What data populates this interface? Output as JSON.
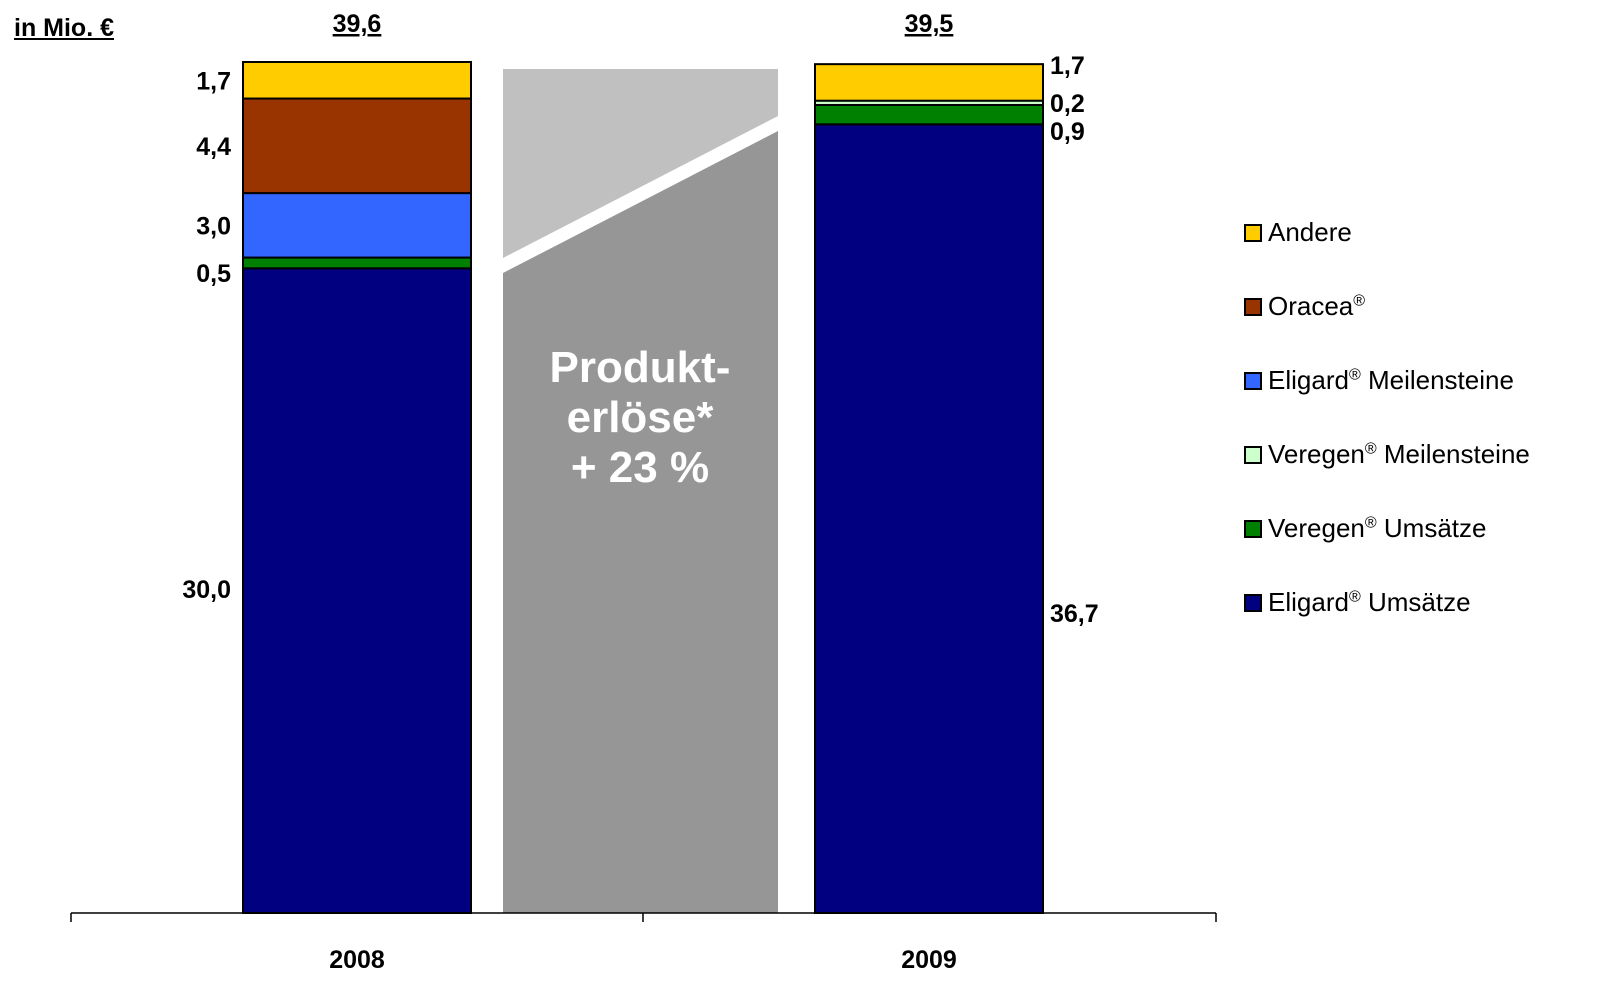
{
  "unit_label": "in Mio. €",
  "growth_label": [
    "Produkt-",
    "erlöse*",
    "+ 23 %"
  ],
  "chart_data": {
    "type": "bar",
    "stacked": true,
    "categories": [
      "2008",
      "2009"
    ],
    "totals": [
      "39,6",
      "39,5"
    ],
    "ylim": [
      0,
      39.6
    ],
    "series": [
      {
        "name": "Eligard® Umsätze",
        "color": "#000080",
        "values": [
          30.0,
          36.7
        ],
        "labels": [
          "30,0",
          "36,7"
        ]
      },
      {
        "name": "Veregen® Umsätze",
        "color": "#008000",
        "values": [
          0.5,
          0.9
        ],
        "labels": [
          "0,5",
          "0,9"
        ]
      },
      {
        "name": "Veregen® Meilensteine",
        "color": "#ccffcc",
        "values": [
          0.0,
          0.2
        ],
        "labels": [
          "",
          "0,2"
        ]
      },
      {
        "name": "Eligard® Meilensteine",
        "color": "#3366ff",
        "values": [
          3.0,
          0.0
        ],
        "labels": [
          "3,0",
          ""
        ]
      },
      {
        "name": "Oracea®",
        "color": "#993300",
        "values": [
          4.4,
          0.0
        ],
        "labels": [
          "4,4",
          ""
        ]
      },
      {
        "name": "Andere",
        "color": "#ffcc00",
        "values": [
          1.7,
          1.7
        ],
        "labels": [
          "1,7",
          "1,7"
        ]
      }
    ],
    "legend": {
      "placement": "right",
      "items": [
        {
          "pre": "Andere",
          "sup": "",
          "post": "",
          "color": "#ffcc00"
        },
        {
          "pre": "Oracea",
          "sup": "®",
          "post": "",
          "color": "#993300"
        },
        {
          "pre": "Eligard",
          "sup": "®",
          "post": " Meilensteine",
          "color": "#3366ff"
        },
        {
          "pre": "Veregen",
          "sup": "®",
          "post": " Meilensteine",
          "color": "#ccffcc"
        },
        {
          "pre": "Veregen",
          "sup": "®",
          "post": " Umsätze",
          "color": "#008000"
        },
        {
          "pre": "Eligard",
          "sup": "®",
          "post": " Umsätze",
          "color": "#000080"
        }
      ]
    }
  },
  "colors": {
    "arrow_light": "#c0c0c0",
    "arrow_dark": "#969696"
  }
}
